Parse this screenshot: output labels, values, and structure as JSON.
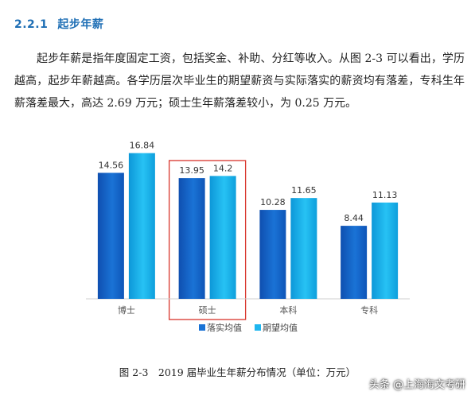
{
  "section": {
    "number": "2.2.1",
    "title": "起步年薪"
  },
  "paragraph": "起步年薪是指年度固定工资，包括奖金、补助、分红等收入。从图 2-3 可以看出，学历越高，起步年薪越高。各学历层次毕业生的期望薪资与实际落实的薪资均有落差，专科生年薪落差最大，高达 2.69 万元；硕士生年薪落差较小，为 0.25 万元。",
  "caption": "图 2-3　2019 届毕业生年薪分布情况（单位：万元）",
  "watermark": "头条 @上海海文考研",
  "colors": {
    "heading": "#1f6fb5",
    "series_actual": "#1a73d6",
    "series_expected": "#1fb6ef",
    "highlight_box": "#d9342b"
  },
  "chart_data": {
    "type": "bar",
    "categories": [
      "博士",
      "硕士",
      "本科",
      "专科"
    ],
    "series": [
      {
        "name": "落实均值",
        "values": [
          14.56,
          13.95,
          10.28,
          8.44
        ]
      },
      {
        "name": "期望均值",
        "values": [
          16.84,
          14.2,
          11.65,
          11.13
        ]
      }
    ],
    "value_labels": [
      [
        "14.56",
        "13.95",
        "10.28",
        "8.44"
      ],
      [
        "16.84",
        "14.2",
        "11.65",
        "11.13"
      ]
    ],
    "ylim": [
      0,
      18
    ],
    "grid": false,
    "legend_position": "bottom",
    "highlighted_category": "硕士"
  }
}
